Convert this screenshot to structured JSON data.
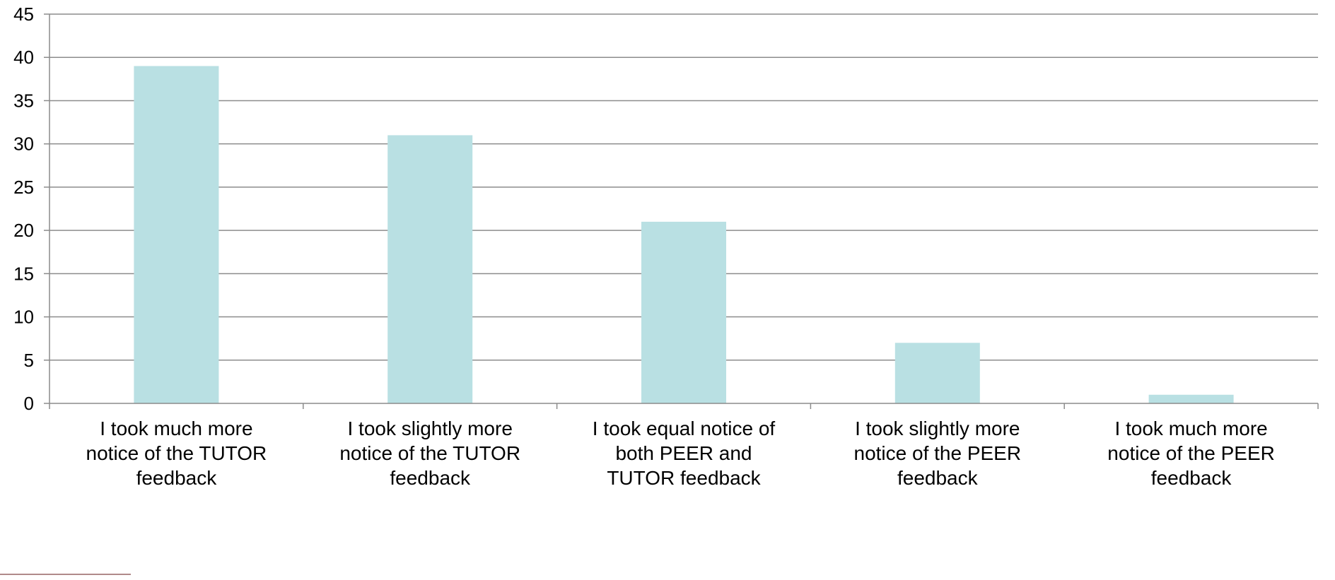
{
  "chart_data": {
    "type": "bar",
    "title": "",
    "xlabel": "",
    "ylabel": "",
    "categories": [
      [
        "I took much more",
        "notice of the TUTOR",
        "feedback"
      ],
      [
        "I took slightly more",
        "notice of the TUTOR",
        "feedback"
      ],
      [
        "I took equal notice of",
        "both PEER and",
        "TUTOR feedback"
      ],
      [
        "I took slightly more",
        "notice of the PEER",
        "feedback"
      ],
      [
        "I took much more",
        "notice of the PEER",
        "feedback"
      ]
    ],
    "values": [
      39,
      31,
      21,
      7,
      1
    ],
    "ylim": [
      0,
      45
    ],
    "yticks": [
      0,
      5,
      10,
      15,
      20,
      25,
      30,
      35,
      40,
      45
    ],
    "grid": true,
    "legend": "none",
    "bar_color": "#b9e0e3",
    "grid_color": "#8c8c8c",
    "axis_color": "#8c8c8c"
  }
}
